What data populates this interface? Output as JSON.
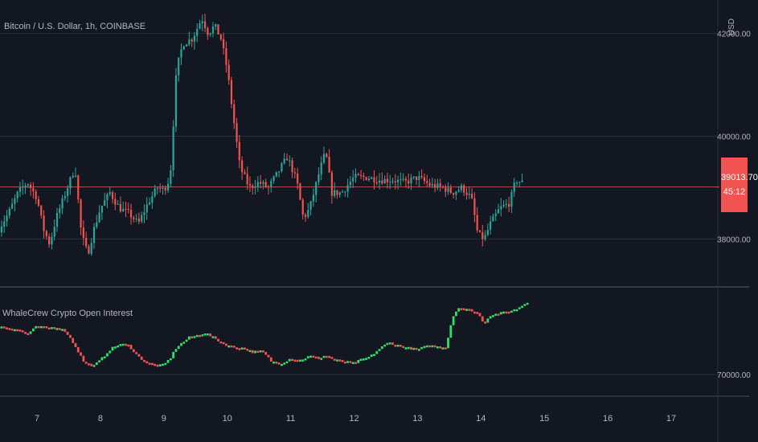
{
  "chart": {
    "title": "Bitcoin / U.S. Dollar, 1h, COINBASE",
    "currency": "USD",
    "last_price": "39013.70",
    "countdown": "45:12",
    "indicator_title": "WhaleCrew Crypto Open Interest",
    "colors": {
      "background": "#131722",
      "up": "#26a69a",
      "down": "#ef5350",
      "indicator_up": "#2ee06a",
      "indicator_down": "#f05350",
      "price_line": "#f05350",
      "grid": "#2a2e39",
      "text": "#b2b5be"
    }
  },
  "chart_data": [
    {
      "type": "candlestick",
      "title": "Bitcoin / U.S. Dollar, 1h, COINBASE",
      "xlabel": "",
      "ylabel": "USD",
      "x_ticks": [
        "7",
        "8",
        "9",
        "10",
        "11",
        "12",
        "13",
        "14",
        "15",
        "16",
        "17"
      ],
      "y_ticks": [
        38000,
        40000,
        42000
      ],
      "y_tick_labels": [
        "38000.00",
        "40000.00",
        "42000.00"
      ],
      "ylim": [
        37100,
        42650
      ],
      "last_price": 39013.7,
      "grid": true,
      "close_path": {
        "x": [
          6.4,
          6.55,
          6.7,
          6.85,
          7.0,
          7.1,
          7.2,
          7.3,
          7.45,
          7.6,
          7.7,
          7.8,
          7.9,
          8.0,
          8.15,
          8.3,
          8.45,
          8.6,
          8.75,
          8.9,
          9.0,
          9.1,
          9.2,
          9.3,
          9.45,
          9.6,
          9.7,
          9.8,
          9.9,
          10.0,
          10.05,
          10.2,
          10.35,
          10.5,
          10.65,
          10.8,
          10.95,
          11.1,
          11.2,
          11.3,
          11.45,
          11.55,
          11.65,
          11.8,
          12.0,
          12.2,
          12.4,
          12.6,
          12.8,
          13.0,
          13.2,
          13.4,
          13.55,
          13.7,
          13.85,
          13.95,
          14.05,
          14.15,
          14.3,
          14.45,
          14.55,
          14.65
        ],
        "y": [
          38200,
          38500,
          38900,
          39100,
          38800,
          38200,
          37900,
          38400,
          38900,
          39400,
          38100,
          37700,
          38200,
          38600,
          38900,
          38600,
          38500,
          38300,
          38700,
          39000,
          38950,
          39200,
          41300,
          41800,
          41900,
          42300,
          42000,
          42150,
          41900,
          41300,
          40800,
          39400,
          39000,
          39100,
          39000,
          39300,
          39600,
          39100,
          38400,
          38600,
          39300,
          39700,
          38900,
          38900,
          39200,
          39200,
          39150,
          39150,
          39100,
          39200,
          39050,
          39000,
          38900,
          39000,
          38800,
          38100,
          38000,
          38300,
          38600,
          38700,
          39150,
          39100
        ]
      }
    },
    {
      "type": "line",
      "title": "WhaleCrew Crypto Open Interest",
      "xlabel": "",
      "ylabel": "",
      "y_ticks": [
        70000
      ],
      "y_tick_labels": [
        "70000.00"
      ],
      "path": {
        "x": [
          6.4,
          6.55,
          6.7,
          6.85,
          7.0,
          7.15,
          7.3,
          7.45,
          7.6,
          7.75,
          7.9,
          8.0,
          8.15,
          8.3,
          8.45,
          8.6,
          8.75,
          8.9,
          9.0,
          9.1,
          9.2,
          9.4,
          9.5,
          9.65,
          9.8,
          9.95,
          10.1,
          10.25,
          10.4,
          10.55,
          10.7,
          10.85,
          11.0,
          11.15,
          11.3,
          11.45,
          11.55,
          11.7,
          11.85,
          12.0,
          12.1,
          12.25,
          12.4,
          12.55,
          12.7,
          12.85,
          13.0,
          13.1,
          13.2,
          13.35,
          13.45,
          13.55,
          13.65,
          13.75,
          13.85,
          13.95,
          14.05,
          14.15,
          14.3,
          14.45,
          14.55,
          14.65,
          14.75
        ],
        "y": [
          84,
          82,
          80,
          74,
          84,
          82,
          83,
          78,
          60,
          38,
          35,
          42,
          55,
          62,
          60,
          46,
          38,
          35,
          36,
          44,
          58,
          70,
          72,
          76,
          69,
          62,
          58,
          57,
          52,
          53,
          40,
          38,
          44,
          42,
          47,
          44,
          48,
          42,
          40,
          38,
          42,
          46,
          56,
          64,
          60,
          57,
          55,
          58,
          60,
          58,
          58,
          95,
          108,
          105,
          104,
          100,
          88,
          98,
          100,
          103,
          105,
          110,
          115
        ]
      }
    }
  ]
}
